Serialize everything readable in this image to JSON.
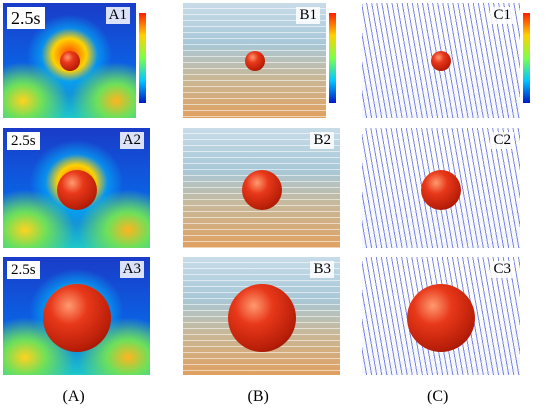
{
  "panels": [
    {
      "label": "A1",
      "time": "2.5s"
    },
    {
      "label": "B1"
    },
    {
      "label": "C1"
    },
    {
      "label": "A2",
      "time": "2.5s"
    },
    {
      "label": "B2"
    },
    {
      "label": "C2"
    },
    {
      "label": "A3",
      "time": "2.5s"
    },
    {
      "label": "B3"
    },
    {
      "label": "C3"
    }
  ],
  "column_labels": [
    "(A)",
    "(B)",
    "(C)"
  ]
}
